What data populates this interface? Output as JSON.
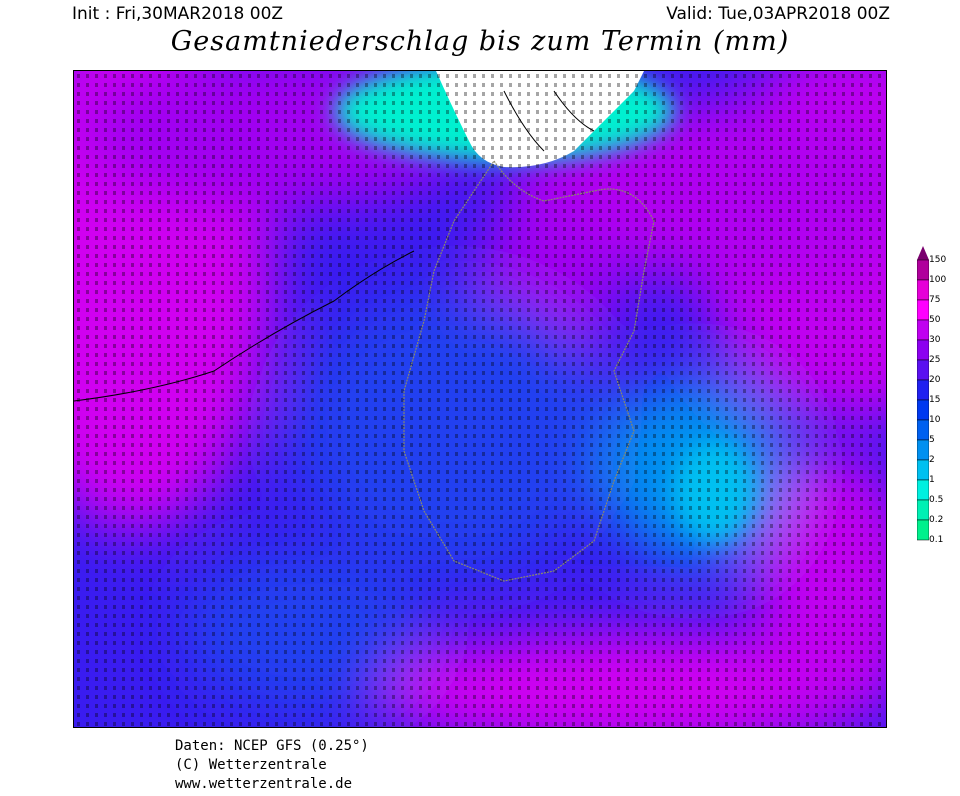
{
  "header": {
    "init": "Init : Fri,30MAR2018 00Z",
    "valid": "Valid: Tue,03APR2018 00Z",
    "title": "Gesamtniederschlag bis zum Termin (mm)"
  },
  "legend": {
    "levels": [
      "150",
      "100",
      "75",
      "50",
      "30",
      "25",
      "20",
      "15",
      "10",
      "5",
      "2",
      "1",
      "0.5",
      "0.2",
      "0.1"
    ],
    "colors": [
      "#7a006e",
      "#b0009c",
      "#e600d8",
      "#ff00ff",
      "#c000f0",
      "#8c00f0",
      "#5a10f0",
      "#2020f0",
      "#0038f0",
      "#0060f0",
      "#0090f0",
      "#00c0f0",
      "#00f0e0",
      "#00f0b4",
      "#00f08c"
    ]
  },
  "map": {
    "background_no_precip": "#ffffff"
  },
  "credits": {
    "line1": "Daten: NCEP GFS (0.25°)",
    "line2": "(C) Wetterzentrale",
    "line3": "www.wetterzentrale.de"
  }
}
